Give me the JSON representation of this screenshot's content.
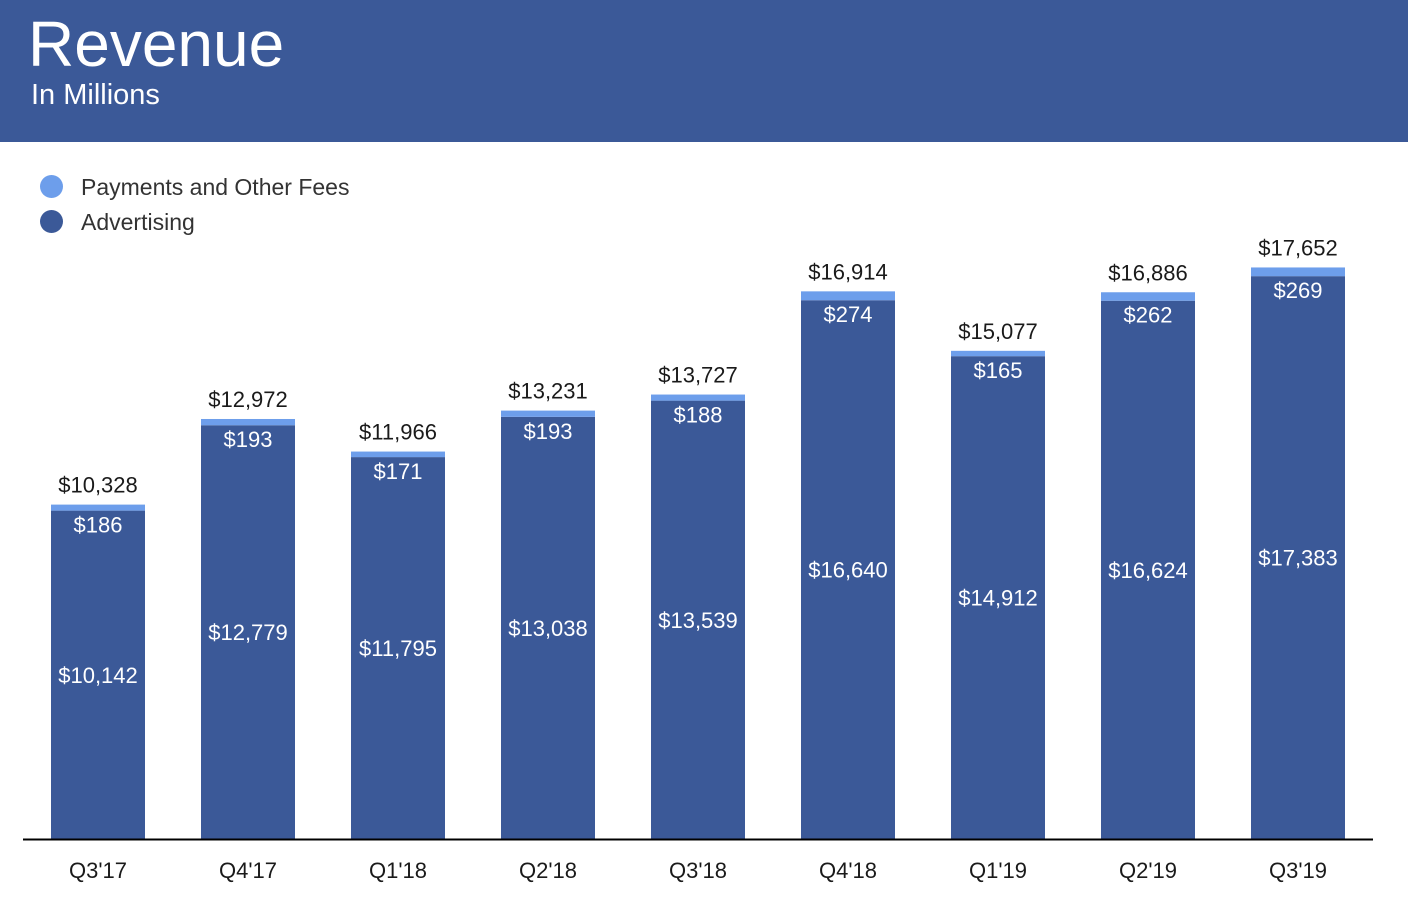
{
  "header": {
    "title": "Revenue",
    "subtitle": "In Millions",
    "background_color": "#3b5998"
  },
  "chart_data": {
    "type": "bar",
    "stacked": true,
    "title": "Revenue",
    "subtitle": "In Millions",
    "xlabel": "",
    "ylabel": "",
    "ylim": [
      0,
      18500
    ],
    "grid": false,
    "legend": "top-left",
    "categories": [
      "Q3'17",
      "Q4'17",
      "Q1'18",
      "Q2'18",
      "Q3'18",
      "Q4'18",
      "Q1'19",
      "Q2'19",
      "Q3'19"
    ],
    "series": [
      {
        "name": "Advertising",
        "color": "#3b5998",
        "values": [
          10142,
          12779,
          11795,
          13038,
          13539,
          16640,
          14912,
          16624,
          17383
        ],
        "labels": [
          "$10,142",
          "$12,779",
          "$11,795",
          "$13,038",
          "$13,539",
          "$16,640",
          "$14,912",
          "$16,624",
          "$17,383"
        ]
      },
      {
        "name": "Payments and Other Fees",
        "color": "#6d9eeb",
        "values": [
          186,
          193,
          171,
          193,
          188,
          274,
          165,
          262,
          269
        ],
        "labels": [
          "$186",
          "$193",
          "$171",
          "$193",
          "$188",
          "$274",
          "$165",
          "$262",
          "$269"
        ]
      }
    ],
    "totals": [
      10328,
      12972,
      11966,
      13231,
      13727,
      16914,
      15077,
      16886,
      17652
    ],
    "total_labels": [
      "$10,328",
      "$12,972",
      "$11,966",
      "$13,231",
      "$13,727",
      "$16,914",
      "$15,077",
      "$16,886",
      "$17,652"
    ]
  }
}
